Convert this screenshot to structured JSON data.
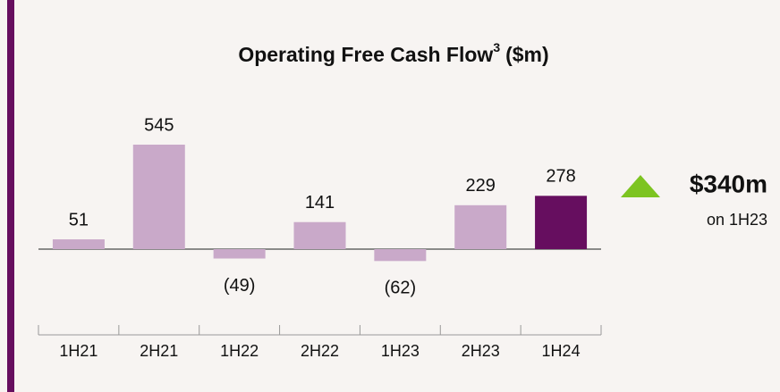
{
  "chart_data": {
    "type": "bar",
    "title": "Operating Free Cash Flow",
    "title_superscript": "3",
    "title_unit": "($m)",
    "categories": [
      "1H21",
      "2H21",
      "1H22",
      "2H22",
      "1H23",
      "2H23",
      "1H24"
    ],
    "values": [
      51,
      545,
      -49,
      141,
      -62,
      229,
      278
    ],
    "value_labels": [
      "51",
      "545",
      "(49)",
      "141",
      "(62)",
      "229",
      "278"
    ],
    "colors": [
      "#c9a9c9",
      "#c9a9c9",
      "#c9a9c9",
      "#c9a9c9",
      "#c9a9c9",
      "#c9a9c9",
      "#660e5f"
    ],
    "annotation": {
      "value": "$340m",
      "text": "on 1H23",
      "color": "#7dc421"
    }
  }
}
